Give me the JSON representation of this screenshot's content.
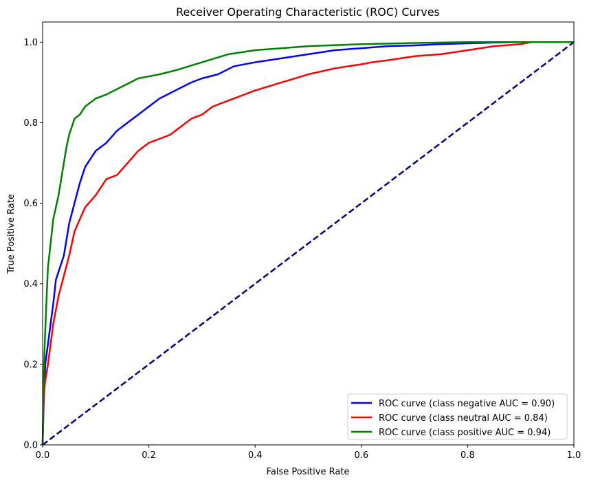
{
  "chart_data": {
    "type": "line",
    "title": "Receiver Operating Characteristic (ROC) Curves",
    "xlabel": "False Positive Rate",
    "ylabel": "True Positive Rate",
    "xlim": [
      0.0,
      1.0
    ],
    "ylim": [
      0.0,
      1.05
    ],
    "x_ticks": [
      0.0,
      0.2,
      0.4,
      0.6,
      0.8,
      1.0
    ],
    "x_tick_labels": [
      "0.0",
      "0.2",
      "0.4",
      "0.6",
      "0.8",
      "1.0"
    ],
    "y_ticks": [
      0.0,
      0.2,
      0.4,
      0.6,
      0.8,
      1.0
    ],
    "y_tick_labels": [
      "0.0",
      "0.2",
      "0.4",
      "0.6",
      "0.8",
      "1.0"
    ],
    "grid": false,
    "legend_position": "lower-right",
    "series": [
      {
        "name": "ROC curve (class negative AUC = 0.90)",
        "color": "#0000ff",
        "style": "solid",
        "x": [
          0.0,
          0.002,
          0.005,
          0.01,
          0.015,
          0.02,
          0.025,
          0.03,
          0.04,
          0.05,
          0.06,
          0.07,
          0.08,
          0.09,
          0.1,
          0.12,
          0.14,
          0.16,
          0.18,
          0.2,
          0.22,
          0.25,
          0.28,
          0.3,
          0.33,
          0.36,
          0.4,
          0.45,
          0.5,
          0.55,
          0.6,
          0.65,
          0.7,
          0.75,
          0.8,
          0.85,
          0.9,
          1.0
        ],
        "y": [
          0.0,
          0.1,
          0.2,
          0.25,
          0.3,
          0.35,
          0.41,
          0.43,
          0.47,
          0.55,
          0.6,
          0.65,
          0.69,
          0.71,
          0.73,
          0.75,
          0.78,
          0.8,
          0.82,
          0.84,
          0.86,
          0.88,
          0.9,
          0.91,
          0.92,
          0.94,
          0.95,
          0.96,
          0.97,
          0.98,
          0.985,
          0.99,
          0.992,
          0.995,
          0.997,
          0.999,
          1.0,
          1.0
        ]
      },
      {
        "name": "ROC curve (class neutral AUC = 0.84)",
        "color": "#ff0000",
        "style": "solid",
        "x": [
          0.0,
          0.002,
          0.005,
          0.01,
          0.015,
          0.02,
          0.03,
          0.04,
          0.05,
          0.06,
          0.07,
          0.08,
          0.1,
          0.12,
          0.14,
          0.16,
          0.18,
          0.2,
          0.22,
          0.24,
          0.26,
          0.28,
          0.3,
          0.32,
          0.35,
          0.38,
          0.4,
          0.45,
          0.5,
          0.55,
          0.6,
          0.62,
          0.65,
          0.7,
          0.75,
          0.8,
          0.85,
          0.9,
          0.92,
          1.0
        ],
        "y": [
          0.0,
          0.12,
          0.16,
          0.2,
          0.25,
          0.3,
          0.37,
          0.42,
          0.47,
          0.53,
          0.56,
          0.59,
          0.62,
          0.66,
          0.67,
          0.7,
          0.73,
          0.75,
          0.76,
          0.77,
          0.79,
          0.81,
          0.82,
          0.84,
          0.855,
          0.87,
          0.88,
          0.9,
          0.92,
          0.935,
          0.945,
          0.95,
          0.955,
          0.965,
          0.97,
          0.98,
          0.99,
          0.995,
          1.0,
          1.0
        ]
      },
      {
        "name": "ROC curve (class positive AUC = 0.94)",
        "color": "#008000",
        "style": "solid",
        "x": [
          0.0,
          0.002,
          0.004,
          0.007,
          0.01,
          0.015,
          0.02,
          0.025,
          0.03,
          0.035,
          0.04,
          0.045,
          0.05,
          0.055,
          0.06,
          0.07,
          0.08,
          0.1,
          0.12,
          0.15,
          0.18,
          0.2,
          0.22,
          0.25,
          0.3,
          0.35,
          0.4,
          0.45,
          0.5,
          0.6,
          0.7,
          0.8,
          0.9,
          1.0
        ],
        "y": [
          0.0,
          0.17,
          0.25,
          0.35,
          0.44,
          0.5,
          0.56,
          0.59,
          0.62,
          0.66,
          0.7,
          0.74,
          0.77,
          0.79,
          0.81,
          0.82,
          0.84,
          0.86,
          0.87,
          0.89,
          0.91,
          0.915,
          0.92,
          0.93,
          0.95,
          0.97,
          0.98,
          0.985,
          0.99,
          0.995,
          0.998,
          1.0,
          1.0,
          1.0
        ]
      },
      {
        "name": "",
        "color": "#000080",
        "style": "dashed",
        "x": [
          0.0,
          1.0
        ],
        "y": [
          0.0,
          1.0
        ]
      }
    ]
  }
}
